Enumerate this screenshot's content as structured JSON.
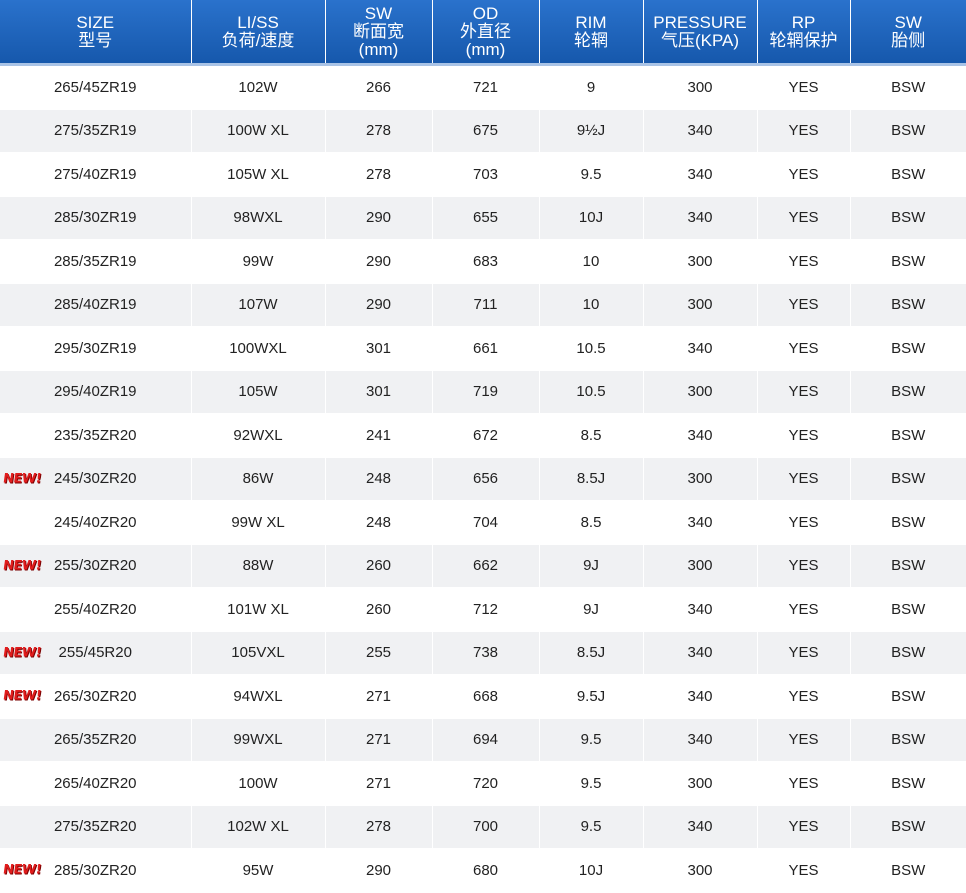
{
  "headers": [
    {
      "en": "SIZE",
      "cn": "型号"
    },
    {
      "en": "LI/SS",
      "cn": "负荷/速度"
    },
    {
      "en": "SW",
      "cn": "断面宽",
      "unit": "(mm)"
    },
    {
      "en": "OD",
      "cn": "外直径",
      "unit": "(mm)"
    },
    {
      "en": "RIM",
      "cn": "轮辋"
    },
    {
      "en": "PRESSURE",
      "cn": "气压(KPA)"
    },
    {
      "en": "RP",
      "cn": "轮辋保护"
    },
    {
      "en": "SW",
      "cn": "胎侧"
    }
  ],
  "new_label": "NEW!",
  "colors": {
    "header_bg": "#1a5fb4",
    "stripe": "#f0f1f3",
    "new_badge": "#e11d1d"
  },
  "rows": [
    {
      "new": false,
      "size": "265/45ZR19",
      "li": "102W",
      "sw": "266",
      "od": "721",
      "rim": "9",
      "pressure": "300",
      "rp": "YES",
      "side": "BSW"
    },
    {
      "new": false,
      "size": "275/35ZR19",
      "li": "100W XL",
      "sw": "278",
      "od": "675",
      "rim": "9½J",
      "pressure": "340",
      "rp": "YES",
      "side": "BSW"
    },
    {
      "new": false,
      "size": "275/40ZR19",
      "li": "105W XL",
      "sw": "278",
      "od": "703",
      "rim": "9.5",
      "pressure": "340",
      "rp": "YES",
      "side": "BSW"
    },
    {
      "new": false,
      "size": "285/30ZR19",
      "li": "98WXL",
      "sw": "290",
      "od": "655",
      "rim": "10J",
      "pressure": "340",
      "rp": "YES",
      "side": "BSW"
    },
    {
      "new": false,
      "size": "285/35ZR19",
      "li": "99W",
      "sw": "290",
      "od": "683",
      "rim": "10",
      "pressure": "300",
      "rp": "YES",
      "side": "BSW"
    },
    {
      "new": false,
      "size": "285/40ZR19",
      "li": "107W",
      "sw": "290",
      "od": "711",
      "rim": "10",
      "pressure": "300",
      "rp": "YES",
      "side": "BSW"
    },
    {
      "new": false,
      "size": "295/30ZR19",
      "li": "100WXL",
      "sw": "301",
      "od": "661",
      "rim": "10.5",
      "pressure": "340",
      "rp": "YES",
      "side": "BSW"
    },
    {
      "new": false,
      "size": "295/40ZR19",
      "li": "105W",
      "sw": "301",
      "od": "719",
      "rim": "10.5",
      "pressure": "300",
      "rp": "YES",
      "side": "BSW"
    },
    {
      "new": false,
      "size": "235/35ZR20",
      "li": "92WXL",
      "sw": "241",
      "od": "672",
      "rim": "8.5",
      "pressure": "340",
      "rp": "YES",
      "side": "BSW"
    },
    {
      "new": true,
      "size": "245/30ZR20",
      "li": "86W",
      "sw": "248",
      "od": "656",
      "rim": "8.5J",
      "pressure": "300",
      "rp": "YES",
      "side": "BSW"
    },
    {
      "new": false,
      "size": "245/40ZR20",
      "li": "99W XL",
      "sw": "248",
      "od": "704",
      "rim": "8.5",
      "pressure": "340",
      "rp": "YES",
      "side": "BSW"
    },
    {
      "new": true,
      "size": "255/30ZR20",
      "li": "88W",
      "sw": "260",
      "od": "662",
      "rim": "9J",
      "pressure": "300",
      "rp": "YES",
      "side": "BSW"
    },
    {
      "new": false,
      "size": "255/40ZR20",
      "li": "101W XL",
      "sw": "260",
      "od": "712",
      "rim": "9J",
      "pressure": "340",
      "rp": "YES",
      "side": "BSW"
    },
    {
      "new": true,
      "size": "255/45R20",
      "li": "105VXL",
      "sw": "255",
      "od": "738",
      "rim": "8.5J",
      "pressure": "340",
      "rp": "YES",
      "side": "BSW"
    },
    {
      "new": true,
      "size": "265/30ZR20",
      "li": "94WXL",
      "sw": "271",
      "od": "668",
      "rim": "9.5J",
      "pressure": "340",
      "rp": "YES",
      "side": "BSW"
    },
    {
      "new": false,
      "size": "265/35ZR20",
      "li": "99WXL",
      "sw": "271",
      "od": "694",
      "rim": "9.5",
      "pressure": "340",
      "rp": "YES",
      "side": "BSW"
    },
    {
      "new": false,
      "size": "265/40ZR20",
      "li": "100W",
      "sw": "271",
      "od": "720",
      "rim": "9.5",
      "pressure": "300",
      "rp": "YES",
      "side": "BSW"
    },
    {
      "new": false,
      "size": "275/35ZR20",
      "li": "102W XL",
      "sw": "278",
      "od": "700",
      "rim": "9.5",
      "pressure": "340",
      "rp": "YES",
      "side": "BSW"
    },
    {
      "new": true,
      "size": "285/30ZR20",
      "li": "95W",
      "sw": "290",
      "od": "680",
      "rim": "10J",
      "pressure": "300",
      "rp": "YES",
      "side": "BSW"
    }
  ]
}
